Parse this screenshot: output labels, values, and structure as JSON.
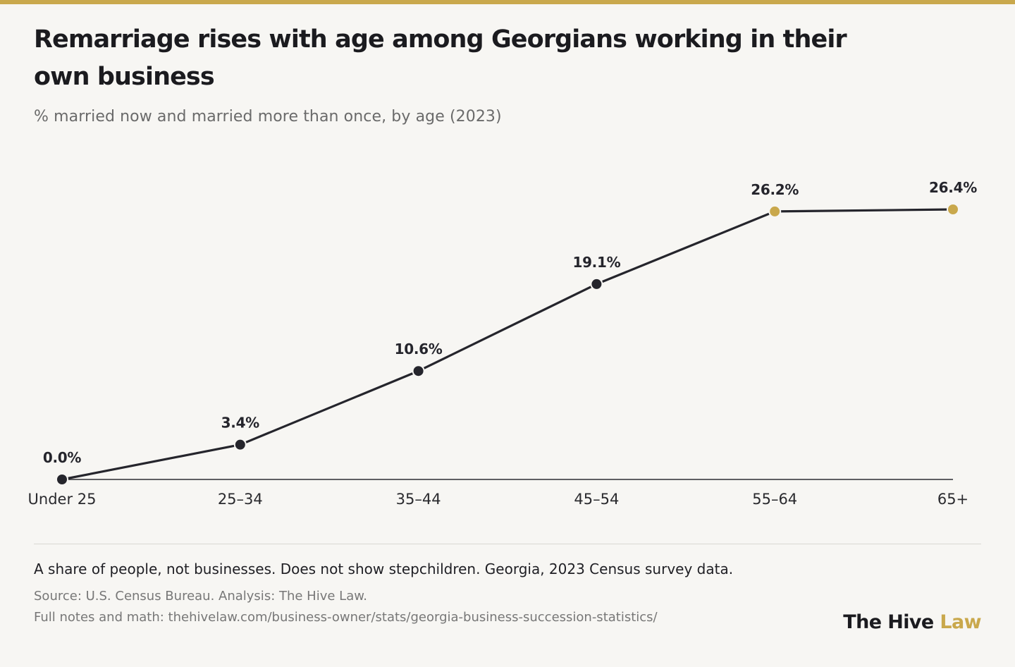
{
  "header": {
    "title": "Remarriage rises with age among Georgians working in their own business",
    "subtitle": "% married now and married more than once, by age (2023)"
  },
  "chart_data": {
    "type": "line",
    "categories": [
      "Under 25",
      "25–34",
      "35–44",
      "45–54",
      "55–64",
      "65+"
    ],
    "values": [
      0.0,
      3.4,
      10.6,
      19.1,
      26.2,
      26.4
    ],
    "data_labels": [
      "0.0%",
      "3.4%",
      "10.6%",
      "19.1%",
      "26.2%",
      "26.4%"
    ],
    "highlighted": [
      false,
      false,
      false,
      false,
      true,
      true
    ],
    "title": "Remarriage rises with age among Georgians working in their own business",
    "subtitle": "% married now and married more than once, by age (2023)",
    "xlabel": "",
    "ylabel": "",
    "ylim": [
      0,
      26.4
    ],
    "grid": false,
    "legend": "none"
  },
  "colors": {
    "accent": "#c9a84c",
    "line": "#25252c",
    "point": "#25252c",
    "highlight_point": "#c9a84c",
    "axis": "#2d2d33",
    "background": "#f7f6f3"
  },
  "footer": {
    "note": "A share of people, not businesses. Does not show stepchildren. Georgia, 2023 Census survey data.",
    "source": "Source: U.S. Census Bureau. Analysis: The Hive Law.",
    "notes_link": "Full notes and math: thehivelaw.com/business-owner/stats/georgia-business-succession-statistics/",
    "brand_name": "The Hive",
    "brand_accent": "Law"
  }
}
